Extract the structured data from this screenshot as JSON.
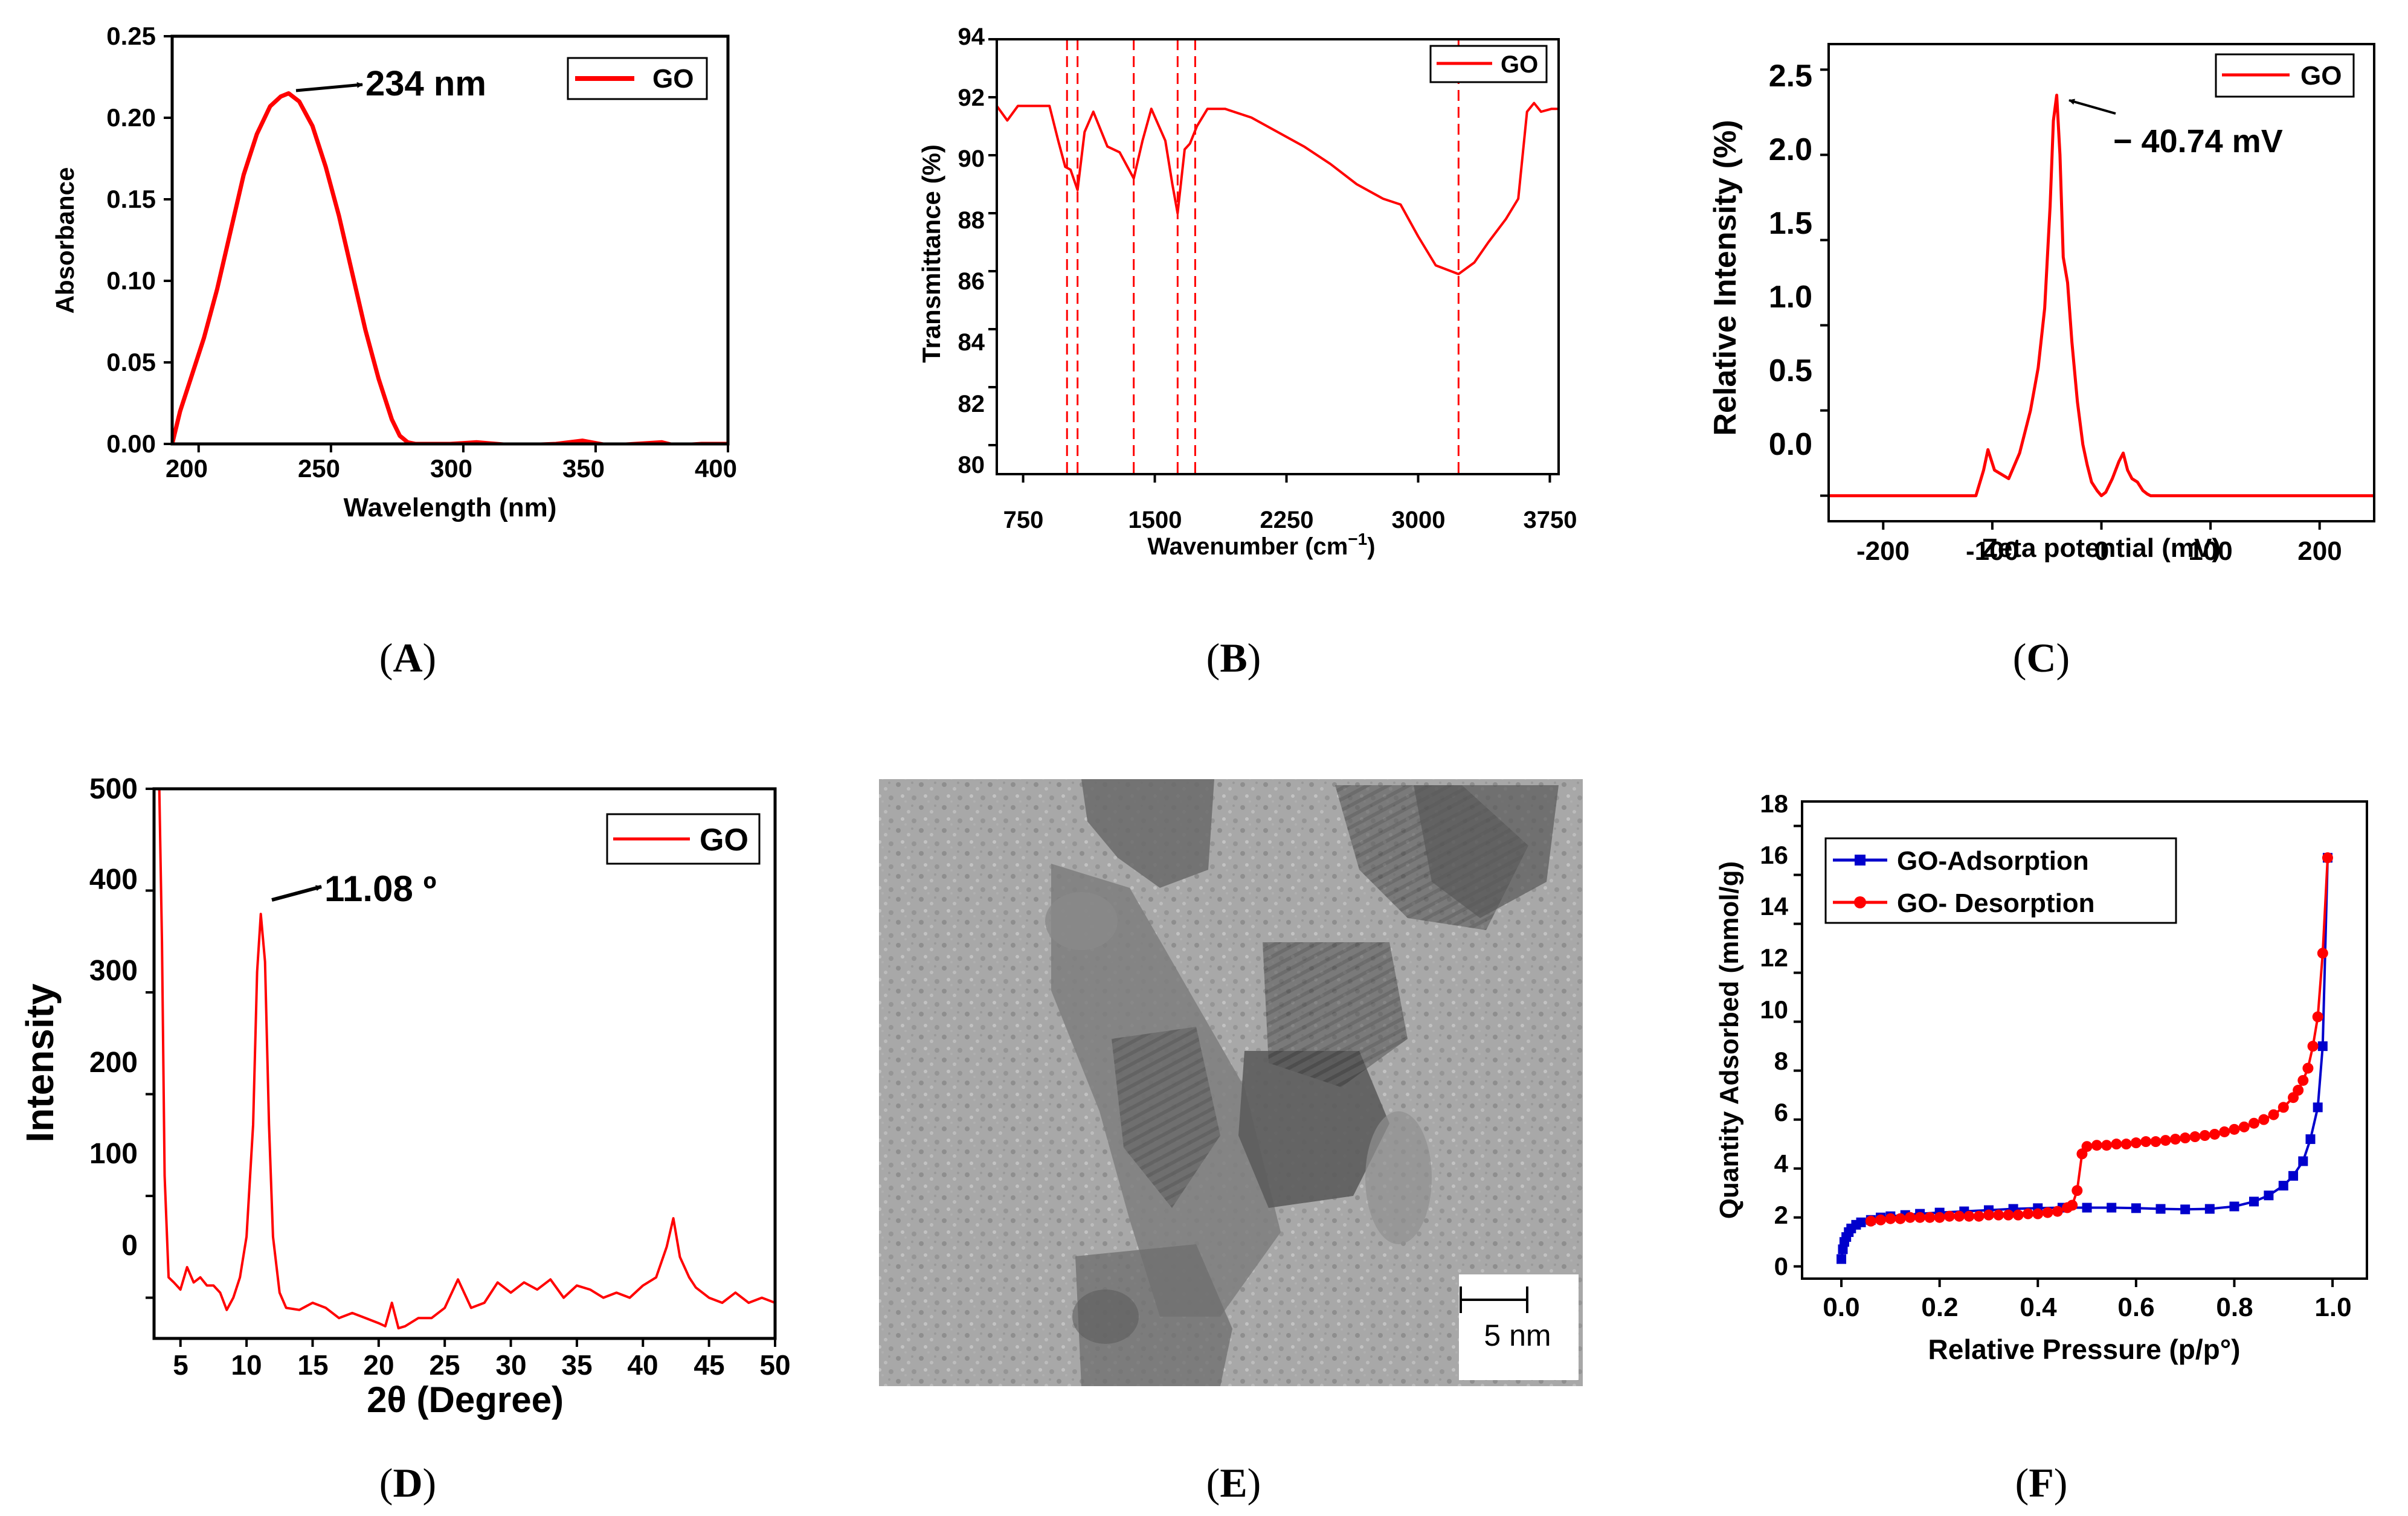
{
  "figure": {
    "colors": {
      "line": "#ff0000",
      "blue": "#0000cc",
      "axis": "#000000"
    },
    "panels": [
      {
        "caption_prefix": "(",
        "caption_letter": "A",
        "caption_suffix": ")"
      },
      {
        "caption_prefix": "(",
        "caption_letter": "B",
        "caption_suffix": ")"
      },
      {
        "caption_prefix": "(",
        "caption_letter": "C",
        "caption_suffix": ")"
      },
      {
        "caption_prefix": "(",
        "caption_letter": "D",
        "caption_suffix": ")"
      },
      {
        "caption_prefix": "(",
        "caption_letter": "E",
        "caption_suffix": ")"
      },
      {
        "caption_prefix": "(",
        "caption_letter": "F",
        "caption_suffix": ")"
      }
    ]
  },
  "chart_data": [
    {
      "panel": "A",
      "type": "line",
      "xlabel": "Wavelength (nm)",
      "ylabel": "Absorbance",
      "xlim": [
        190,
        400
      ],
      "ylim": [
        0,
        0.25
      ],
      "xticks": [
        "200",
        "250",
        "300",
        "350",
        "400"
      ],
      "yticks": [
        "0.00",
        "0.05",
        "0.10",
        "0.15",
        "0.20",
        "0.25"
      ],
      "legend": [
        "GO"
      ],
      "legend_position": "top-right",
      "annotation": "234 nm",
      "annotation_point": [
        234,
        0.215
      ],
      "series": [
        {
          "name": "GO",
          "x": [
            190,
            193,
            197,
            202,
            207,
            212,
            217,
            222,
            227,
            231,
            234,
            238,
            243,
            248,
            253,
            258,
            263,
            268,
            273,
            276,
            279,
            282,
            286,
            295,
            305,
            320,
            335,
            345,
            355,
            365,
            375,
            380,
            390,
            400
          ],
          "y": [
            0,
            0.02,
            0.04,
            0.065,
            0.095,
            0.13,
            0.165,
            0.19,
            0.207,
            0.213,
            0.215,
            0.21,
            0.195,
            0.17,
            0.14,
            0.105,
            0.07,
            0.04,
            0.015,
            0.005,
            0.001,
            0,
            0,
            0,
            0.001,
            -0.001,
            0,
            0.002,
            -0.001,
            0,
            0.001,
            -0.001,
            0,
            0
          ]
        }
      ]
    },
    {
      "panel": "B",
      "type": "line",
      "xlabel": "Wavenumber (cm",
      "xlabel_sup": "−1",
      "xlabel_end": ")",
      "ylabel": "Transmittance (%)",
      "xlim": [
        600,
        3800
      ],
      "ylim": [
        79,
        94
      ],
      "xticks": [
        "750",
        "1500",
        "2250",
        "3000",
        "3750"
      ],
      "yticks": [
        "80",
        "82",
        "84",
        "86",
        "88",
        "90",
        "92",
        "94"
      ],
      "legend": [
        "GO"
      ],
      "legend_position": "top-right",
      "vlines": [
        1000,
        1060,
        1380,
        1630,
        1730,
        3230
      ],
      "series": [
        {
          "name": "GO",
          "x": [
            600,
            660,
            720,
            900,
            950,
            990,
            1020,
            1060,
            1100,
            1150,
            1230,
            1300,
            1380,
            1430,
            1480,
            1560,
            1600,
            1630,
            1670,
            1700,
            1740,
            1800,
            1900,
            2050,
            2200,
            2350,
            2500,
            2650,
            2800,
            2900,
            3000,
            3100,
            3230,
            3320,
            3400,
            3500,
            3570,
            3620,
            3660,
            3700,
            3760,
            3800
          ],
          "y": [
            91.7,
            91.2,
            91.7,
            91.7,
            90.5,
            89.6,
            89.5,
            88.8,
            90.8,
            91.5,
            90.3,
            90.1,
            89.2,
            90.5,
            91.6,
            90.5,
            89.0,
            88.0,
            90.2,
            90.4,
            91.0,
            91.6,
            91.6,
            91.3,
            90.8,
            90.3,
            89.7,
            89.0,
            88.5,
            88.3,
            87.2,
            86.2,
            85.9,
            86.3,
            87.0,
            87.8,
            88.5,
            91.5,
            91.8,
            91.5,
            91.6,
            91.6
          ]
        }
      ]
    },
    {
      "panel": "C",
      "type": "line",
      "xlabel": "Zeta potential (mV)",
      "ylabel": "Relative Intensity (%)",
      "xlim": [
        -250,
        250
      ],
      "ylim": [
        -0.15,
        2.65
      ],
      "xticks": [
        "-200",
        "-100",
        "0",
        "100",
        "200"
      ],
      "yticks": [
        "0.0",
        "0.5",
        "1.0",
        "1.5",
        "2.0",
        "2.5"
      ],
      "legend": [
        "GO"
      ],
      "legend_position": "top-right",
      "annotation": "− 40.74 mV",
      "annotation_point": [
        -40.74,
        2.35
      ],
      "series": [
        {
          "name": "GO",
          "x": [
            -250,
            -115,
            -108,
            -104,
            -98,
            -85,
            -75,
            -65,
            -58,
            -52,
            -47,
            -44,
            -41,
            -38,
            -35,
            -31,
            -27,
            -22,
            -17,
            -13,
            -9,
            -4,
            0,
            4,
            10,
            16,
            20,
            24,
            28,
            33,
            38,
            42,
            45,
            250
          ],
          "y": [
            0,
            0,
            0.15,
            0.27,
            0.15,
            0.1,
            0.25,
            0.5,
            0.75,
            1.1,
            1.7,
            2.2,
            2.35,
            2.0,
            1.4,
            1.25,
            0.9,
            0.55,
            0.3,
            0.18,
            0.08,
            0.03,
            0,
            0.02,
            0.1,
            0.2,
            0.25,
            0.15,
            0.1,
            0.08,
            0.03,
            0.01,
            0,
            0
          ]
        }
      ]
    },
    {
      "panel": "D",
      "type": "line",
      "xlabel": "2θ (Degree)",
      "ylabel": "Intensity",
      "xlim": [
        3,
        50
      ],
      "ylim": [
        -40,
        500
      ],
      "xticks": [
        "5",
        "10",
        "15",
        "20",
        "25",
        "30",
        "35",
        "40",
        "45",
        "50"
      ],
      "yticks": [
        "0",
        "100",
        "200",
        "300",
        "400",
        "500"
      ],
      "legend": [
        "GO"
      ],
      "legend_position": "top-right",
      "annotation": "11.08 º",
      "annotation_point": [
        11.08,
        377
      ],
      "series": [
        {
          "name": "GO",
          "x": [
            3.4,
            3.6,
            3.8,
            4.1,
            4.5,
            5,
            5.5,
            6,
            6.5,
            7,
            7.5,
            8,
            8.5,
            9,
            9.5,
            10,
            10.5,
            10.8,
            11.08,
            11.4,
            11.7,
            12,
            12.5,
            13,
            14,
            15,
            16,
            17,
            18,
            19,
            20,
            20.5,
            21,
            21.5,
            22,
            23,
            24,
            25,
            26,
            27,
            28,
            29,
            30,
            31,
            32,
            33,
            34,
            35,
            36,
            37,
            38,
            39,
            40,
            41,
            41.8,
            42.3,
            42.8,
            43.5,
            44,
            45,
            46,
            47,
            48,
            49,
            50
          ],
          "y": [
            500,
            350,
            120,
            20,
            15,
            8,
            30,
            15,
            20,
            12,
            12,
            5,
            -12,
            0,
            20,
            60,
            170,
            320,
            377,
            330,
            170,
            60,
            5,
            -10,
            -12,
            -5,
            -10,
            -20,
            -15,
            -20,
            -25,
            -28,
            -5,
            -30,
            -28,
            -20,
            -20,
            -10,
            18,
            -10,
            -5,
            15,
            5,
            15,
            8,
            18,
            0,
            12,
            8,
            0,
            5,
            0,
            12,
            20,
            50,
            78,
            40,
            20,
            10,
            0,
            -5,
            5,
            -5,
            0,
            -5
          ]
        }
      ]
    },
    {
      "panel": "E",
      "type": "image",
      "scalebar_label": "5 nm"
    },
    {
      "panel": "F",
      "type": "line",
      "xlabel": "Relative Pressure (p/p°)",
      "ylabel": "Quantity Adsorbed (mmol/g)",
      "xlim": [
        -0.08,
        1.07
      ],
      "ylim": [
        -0.5,
        19
      ],
      "xticks": [
        "0.0",
        "0.2",
        "0.4",
        "0.6",
        "0.8",
        "1.0"
      ],
      "yticks": [
        "0",
        "2",
        "4",
        "6",
        "8",
        "10",
        "12",
        "14",
        "16",
        "18"
      ],
      "legend": [
        "GO-Adsorption",
        "GO- Desorption"
      ],
      "legend_position": "top-left",
      "series": [
        {
          "name": "GO-Adsorption",
          "color": "#0000cc",
          "marker": "square",
          "x": [
            0.0,
            0.003,
            0.006,
            0.01,
            0.015,
            0.02,
            0.03,
            0.04,
            0.06,
            0.08,
            0.1,
            0.13,
            0.16,
            0.2,
            0.25,
            0.3,
            0.35,
            0.4,
            0.45,
            0.5,
            0.55,
            0.6,
            0.65,
            0.7,
            0.75,
            0.8,
            0.84,
            0.87,
            0.9,
            0.92,
            0.94,
            0.955,
            0.97,
            0.98,
            0.99
          ],
          "y": [
            0.3,
            0.7,
            1.0,
            1.2,
            1.4,
            1.55,
            1.7,
            1.8,
            1.9,
            2.0,
            2.05,
            2.1,
            2.15,
            2.2,
            2.25,
            2.3,
            2.35,
            2.38,
            2.4,
            2.4,
            2.4,
            2.38,
            2.35,
            2.33,
            2.35,
            2.45,
            2.65,
            2.9,
            3.3,
            3.7,
            4.3,
            5.2,
            6.5,
            9.0,
            16.7
          ]
        },
        {
          "name": "GO- Desorption",
          "color": "#ff0000",
          "marker": "circle",
          "x": [
            0.99,
            0.98,
            0.97,
            0.96,
            0.95,
            0.94,
            0.93,
            0.92,
            0.9,
            0.88,
            0.86,
            0.84,
            0.82,
            0.8,
            0.78,
            0.76,
            0.74,
            0.72,
            0.7,
            0.68,
            0.66,
            0.64,
            0.62,
            0.6,
            0.58,
            0.56,
            0.54,
            0.52,
            0.5,
            0.49,
            0.48,
            0.47,
            0.46,
            0.44,
            0.42,
            0.4,
            0.38,
            0.36,
            0.34,
            0.32,
            0.3,
            0.28,
            0.26,
            0.24,
            0.22,
            0.2,
            0.18,
            0.16,
            0.14,
            0.12,
            0.1,
            0.08,
            0.06
          ],
          "y": [
            16.7,
            12.8,
            10.2,
            9.0,
            8.1,
            7.6,
            7.2,
            6.9,
            6.5,
            6.2,
            6.0,
            5.85,
            5.7,
            5.6,
            5.5,
            5.4,
            5.35,
            5.3,
            5.25,
            5.2,
            5.15,
            5.1,
            5.1,
            5.05,
            5.0,
            5.0,
            4.95,
            4.95,
            4.9,
            4.6,
            3.1,
            2.5,
            2.4,
            2.25,
            2.2,
            2.15,
            2.15,
            2.1,
            2.1,
            2.1,
            2.1,
            2.05,
            2.05,
            2.05,
            2.05,
            2.0,
            2.0,
            2.0,
            2.0,
            1.95,
            1.95,
            1.9,
            1.85
          ]
        }
      ]
    }
  ]
}
